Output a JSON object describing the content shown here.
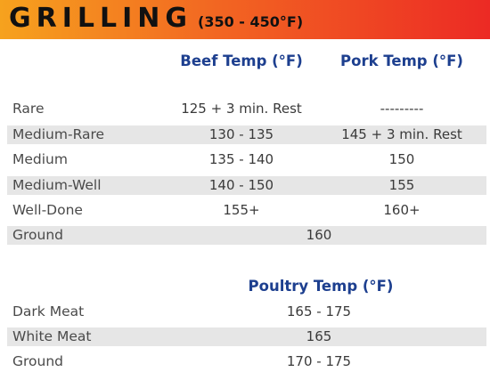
{
  "banner": {
    "title": "GRILLING",
    "subtitle": "(350 - 450°F)"
  },
  "meat_table": {
    "headers": [
      "Beef Temp (°F)",
      "Pork Temp (°F)"
    ],
    "rows": [
      {
        "label": "Rare",
        "beef": "125 + 3 min. Rest",
        "pork": "---------"
      },
      {
        "label": "Medium-Rare",
        "beef": "130 - 135",
        "pork": "145 + 3 min. Rest"
      },
      {
        "label": "Medium",
        "beef": "135 - 140",
        "pork": "150"
      },
      {
        "label": "Medium-Well",
        "beef": "140 - 150",
        "pork": "155"
      },
      {
        "label": "Well-Done",
        "beef": "155+",
        "pork": "160+"
      },
      {
        "label": "Ground",
        "combined": "160"
      }
    ]
  },
  "poultry_table": {
    "header": "Poultry Temp (°F)",
    "rows": [
      {
        "label": "Dark Meat",
        "value": "165 - 175"
      },
      {
        "label": "White Meat",
        "value": "165"
      },
      {
        "label": "Ground",
        "value": "170 - 175"
      }
    ]
  }
}
